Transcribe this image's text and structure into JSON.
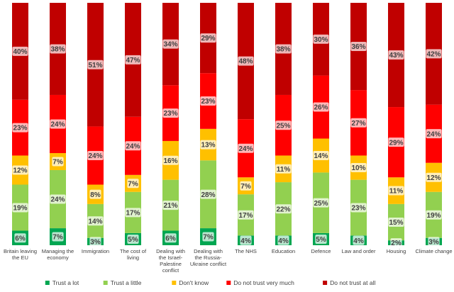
{
  "chart_data": {
    "type": "bar",
    "stacked": true,
    "normalized": true,
    "categories": [
      [
        "Britain leaving",
        "the EU"
      ],
      [
        "Managing the",
        "economy"
      ],
      [
        "Immigration"
      ],
      [
        "The cost of",
        "living"
      ],
      [
        "Dealing with",
        "the Israel-",
        "Palestine",
        "conflict"
      ],
      [
        "Dealing with",
        "the Russia-",
        "Ukraine conflict"
      ],
      [
        "The NHS"
      ],
      [
        "Education"
      ],
      [
        "Defence"
      ],
      [
        "Law and order"
      ],
      [
        "Housing"
      ],
      [
        "Climate change"
      ]
    ],
    "series": [
      {
        "name": "Trust a lot",
        "color": "#00a651",
        "values": [
          6,
          7,
          3,
          5,
          6,
          7,
          4,
          4,
          5,
          4,
          2,
          3
        ]
      },
      {
        "name": "Trust a little",
        "color": "#92d050",
        "values": [
          19,
          24,
          14,
          17,
          21,
          28,
          17,
          22,
          25,
          23,
          15,
          19
        ]
      },
      {
        "name": "Don't know",
        "color": "#ffc000",
        "values": [
          12,
          7,
          8,
          7,
          16,
          13,
          7,
          11,
          14,
          10,
          11,
          12
        ]
      },
      {
        "name": "Do not trust very much",
        "color": "#ff0000",
        "values": [
          23,
          24,
          24,
          24,
          23,
          23,
          24,
          25,
          26,
          27,
          29,
          24
        ]
      },
      {
        "name": "Do not trust at all",
        "color": "#c00000",
        "values": [
          40,
          38,
          51,
          47,
          34,
          29,
          48,
          38,
          30,
          36,
          43,
          42
        ]
      }
    ],
    "label_suffix": "%",
    "ylim": [
      0,
      100
    ],
    "legend_position": "bottom",
    "grid": false
  }
}
